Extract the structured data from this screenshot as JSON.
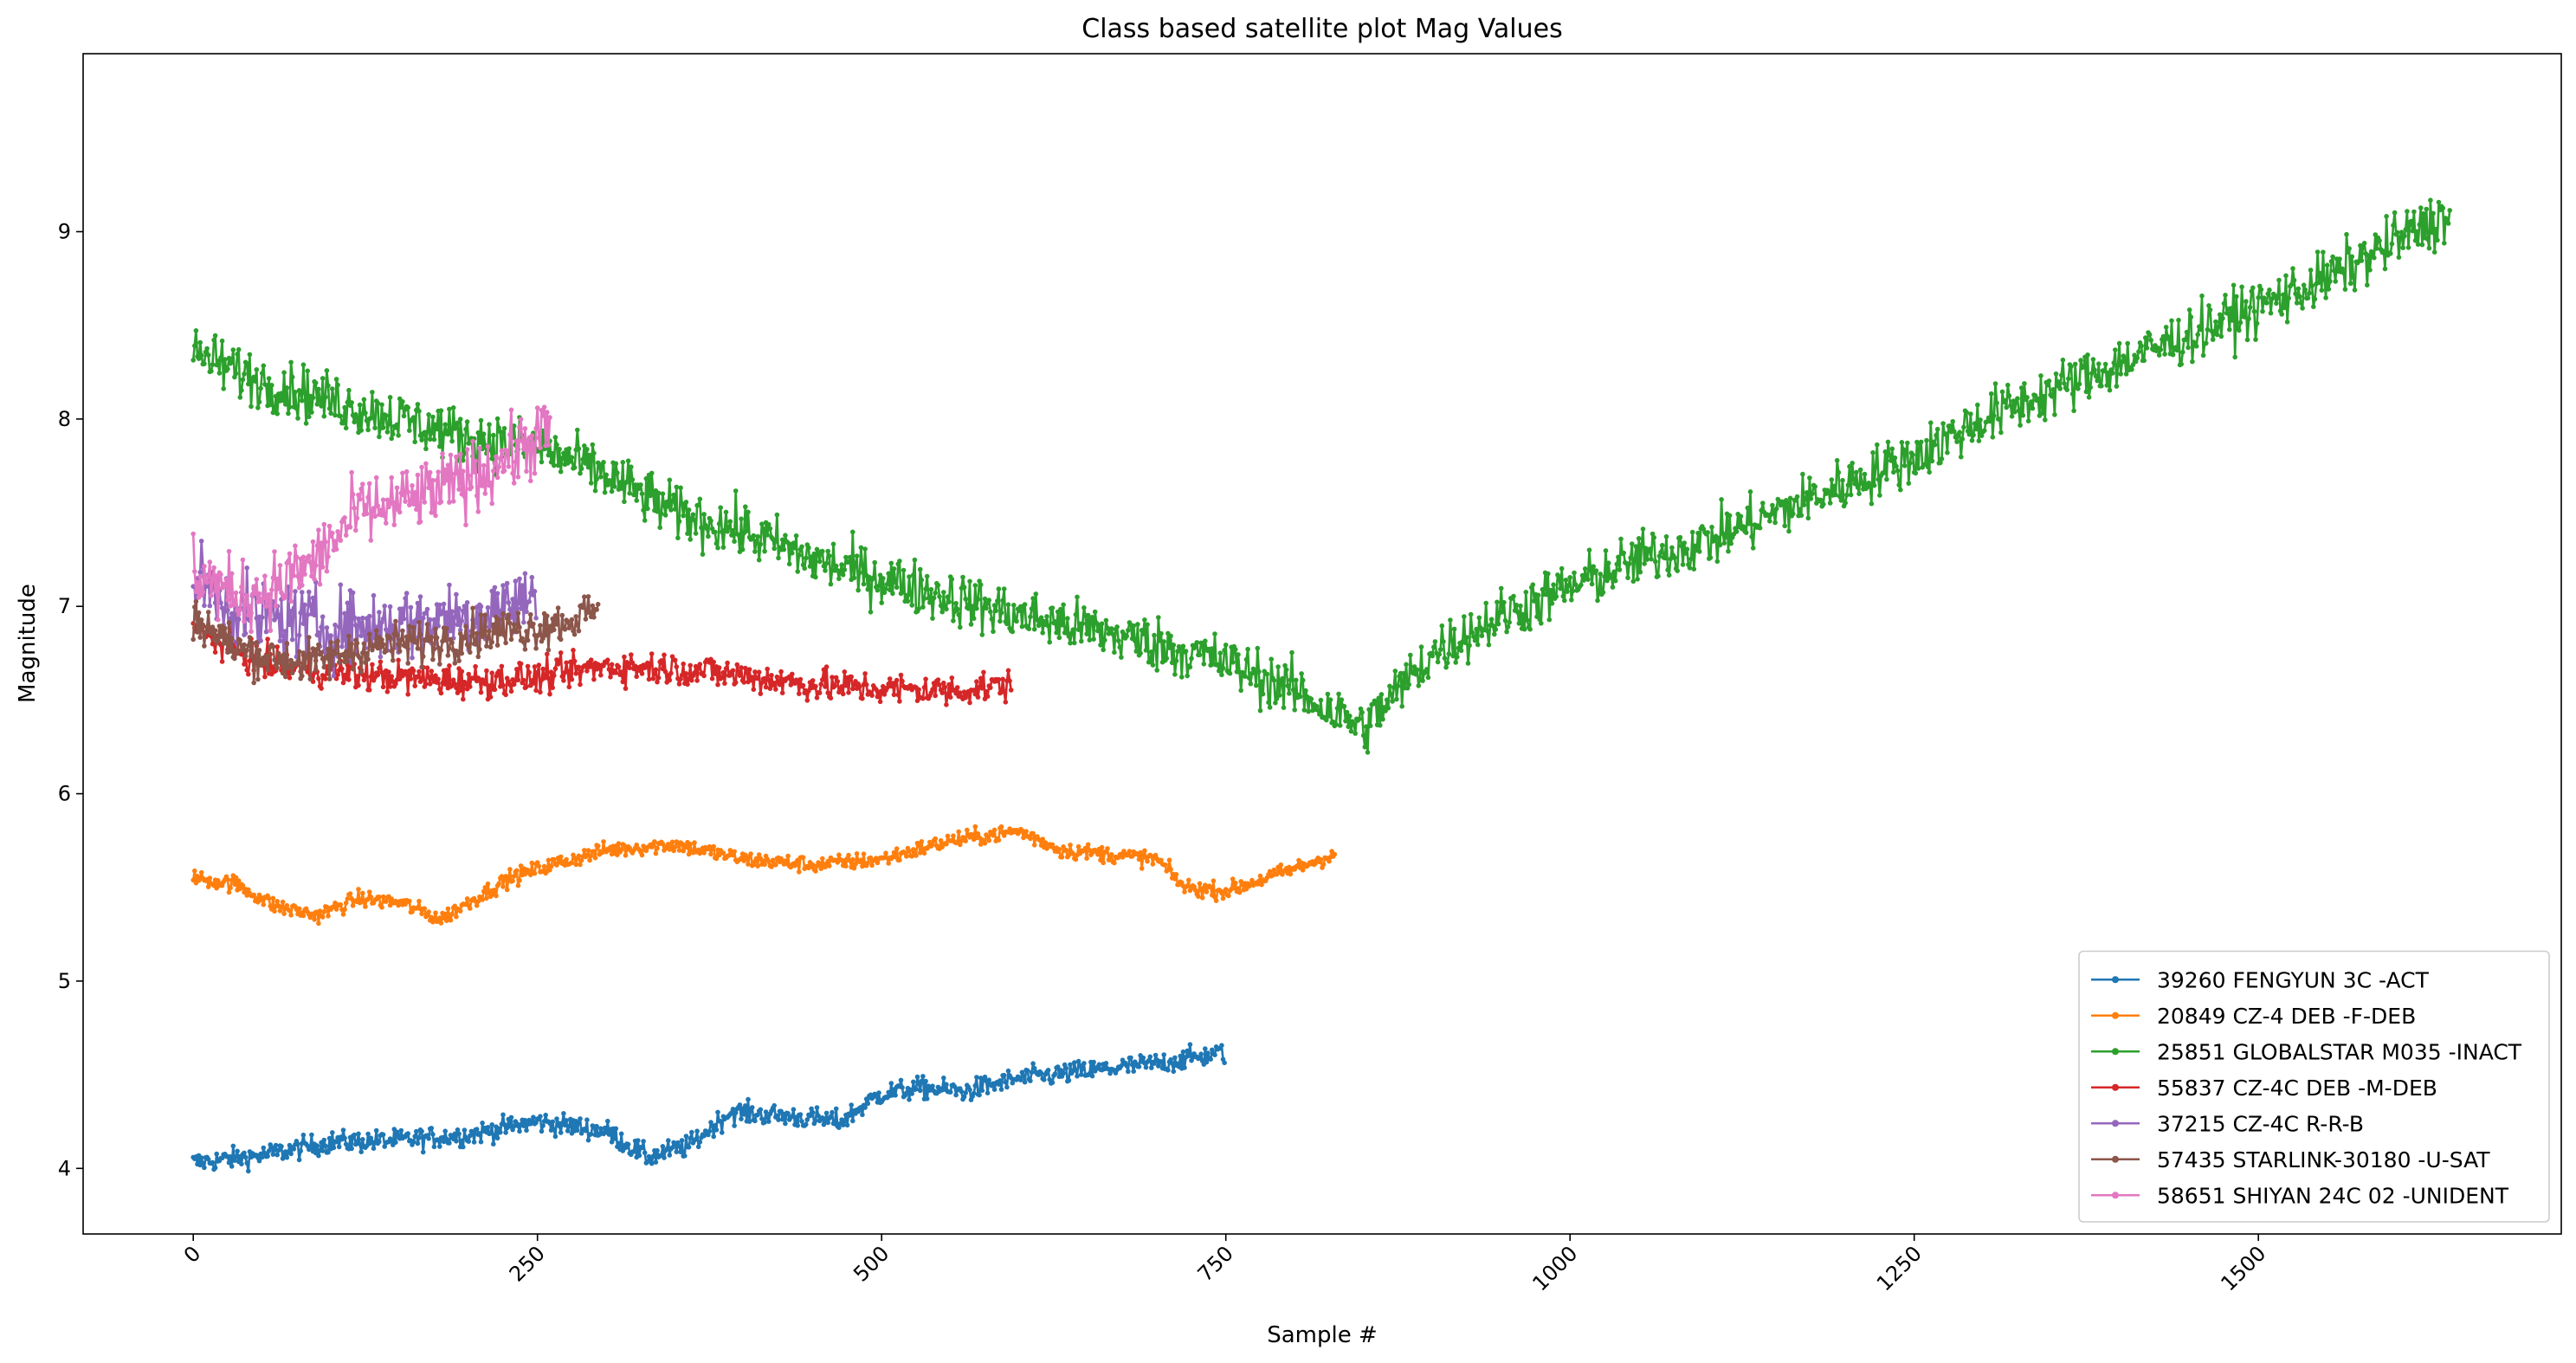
{
  "chart_data": {
    "type": "line",
    "title": "Class based satellite plot Mag Values",
    "xlabel": "Sample #",
    "ylabel": "Magnitude",
    "xlim": [
      -80,
      1720
    ],
    "ylim": [
      3.65,
      9.95
    ],
    "xticks": [
      0,
      250,
      500,
      750,
      1000,
      1250,
      1500
    ],
    "xtick_rotation": 45,
    "yticks": [
      4,
      5,
      6,
      7,
      8,
      9
    ],
    "grid": false,
    "legend_position": "lower-right",
    "marker": "circle",
    "noise_note": "Series are dense noisy traces; values below are the underlying trend (x, magnitude) with typical scatter amplitude.",
    "series": [
      {
        "name": "39260 FENGYUN 3C -ACT",
        "color": "#1f77b4",
        "n": 750,
        "noise": 0.04,
        "x": [
          0,
          50,
          100,
          150,
          200,
          250,
          300,
          330,
          360,
          390,
          430,
          470,
          500,
          530,
          560,
          600,
          650,
          700,
          750
        ],
        "y": [
          4.03,
          4.07,
          4.14,
          4.15,
          4.18,
          4.25,
          4.2,
          4.06,
          4.12,
          4.3,
          4.28,
          4.25,
          4.4,
          4.43,
          4.41,
          4.48,
          4.52,
          4.56,
          4.62
        ]
      },
      {
        "name": "20849 CZ-4 DEB -F-DEB",
        "color": "#ff7f0e",
        "n": 830,
        "noise": 0.03,
        "x": [
          0,
          30,
          60,
          90,
          120,
          150,
          180,
          200,
          230,
          260,
          300,
          350,
          400,
          450,
          500,
          550,
          600,
          630,
          660,
          700,
          720,
          750,
          800,
          830
        ],
        "y": [
          5.55,
          5.52,
          5.4,
          5.35,
          5.44,
          5.42,
          5.33,
          5.42,
          5.55,
          5.62,
          5.7,
          5.73,
          5.65,
          5.62,
          5.65,
          5.75,
          5.8,
          5.7,
          5.68,
          5.65,
          5.5,
          5.48,
          5.6,
          5.68
        ]
      },
      {
        "name": "25851 GLOBALSTAR M035 -INACT",
        "color": "#2ca02c",
        "n": 1640,
        "noise": 0.1,
        "x": [
          0,
          50,
          100,
          150,
          200,
          250,
          300,
          350,
          400,
          450,
          500,
          550,
          600,
          650,
          700,
          750,
          800,
          850,
          900,
          950,
          1000,
          1050,
          1100,
          1150,
          1200,
          1250,
          1300,
          1350,
          1400,
          1450,
          1500,
          1550,
          1600,
          1640
        ],
        "y": [
          8.35,
          8.2,
          8.1,
          8.0,
          7.9,
          7.85,
          7.7,
          7.5,
          7.4,
          7.25,
          7.15,
          7.05,
          6.95,
          6.88,
          6.8,
          6.7,
          6.55,
          6.35,
          6.75,
          6.95,
          7.1,
          7.25,
          7.35,
          7.5,
          7.65,
          7.8,
          8.0,
          8.15,
          8.3,
          8.45,
          8.6,
          8.75,
          8.95,
          9.1
        ]
      },
      {
        "name": "55837 CZ-4C DEB -M-DEB",
        "color": "#d62728",
        "n": 595,
        "noise": 0.06,
        "x": [
          0,
          50,
          100,
          150,
          200,
          250,
          300,
          350,
          400,
          450,
          500,
          550,
          595
        ],
        "y": [
          6.88,
          6.7,
          6.65,
          6.62,
          6.6,
          6.62,
          6.68,
          6.67,
          6.63,
          6.58,
          6.56,
          6.55,
          6.58
        ]
      },
      {
        "name": "37215 CZ-4C R-R-B",
        "color": "#9467bd",
        "n": 250,
        "noise": 0.14,
        "x": [
          0,
          40,
          80,
          120,
          160,
          200,
          250
        ],
        "y": [
          7.15,
          6.95,
          6.9,
          6.88,
          6.92,
          6.95,
          7.05
        ]
      },
      {
        "name": "57435 STARLINK-30180 -U-SAT",
        "color": "#8c564b",
        "n": 295,
        "noise": 0.08,
        "x": [
          0,
          30,
          60,
          90,
          120,
          150,
          180,
          210,
          240,
          270,
          295
        ],
        "y": [
          6.95,
          6.78,
          6.72,
          6.7,
          6.78,
          6.8,
          6.82,
          6.86,
          6.88,
          6.92,
          6.98
        ]
      },
      {
        "name": "58651 SHIYAN 24C 02 -UNIDENT",
        "color": "#e377c2",
        "n": 260,
        "noise": 0.13,
        "x": [
          0,
          30,
          60,
          90,
          120,
          150,
          180,
          210,
          240,
          260
        ],
        "y": [
          7.2,
          7.05,
          7.1,
          7.25,
          7.5,
          7.55,
          7.62,
          7.72,
          7.85,
          7.95
        ]
      }
    ]
  }
}
